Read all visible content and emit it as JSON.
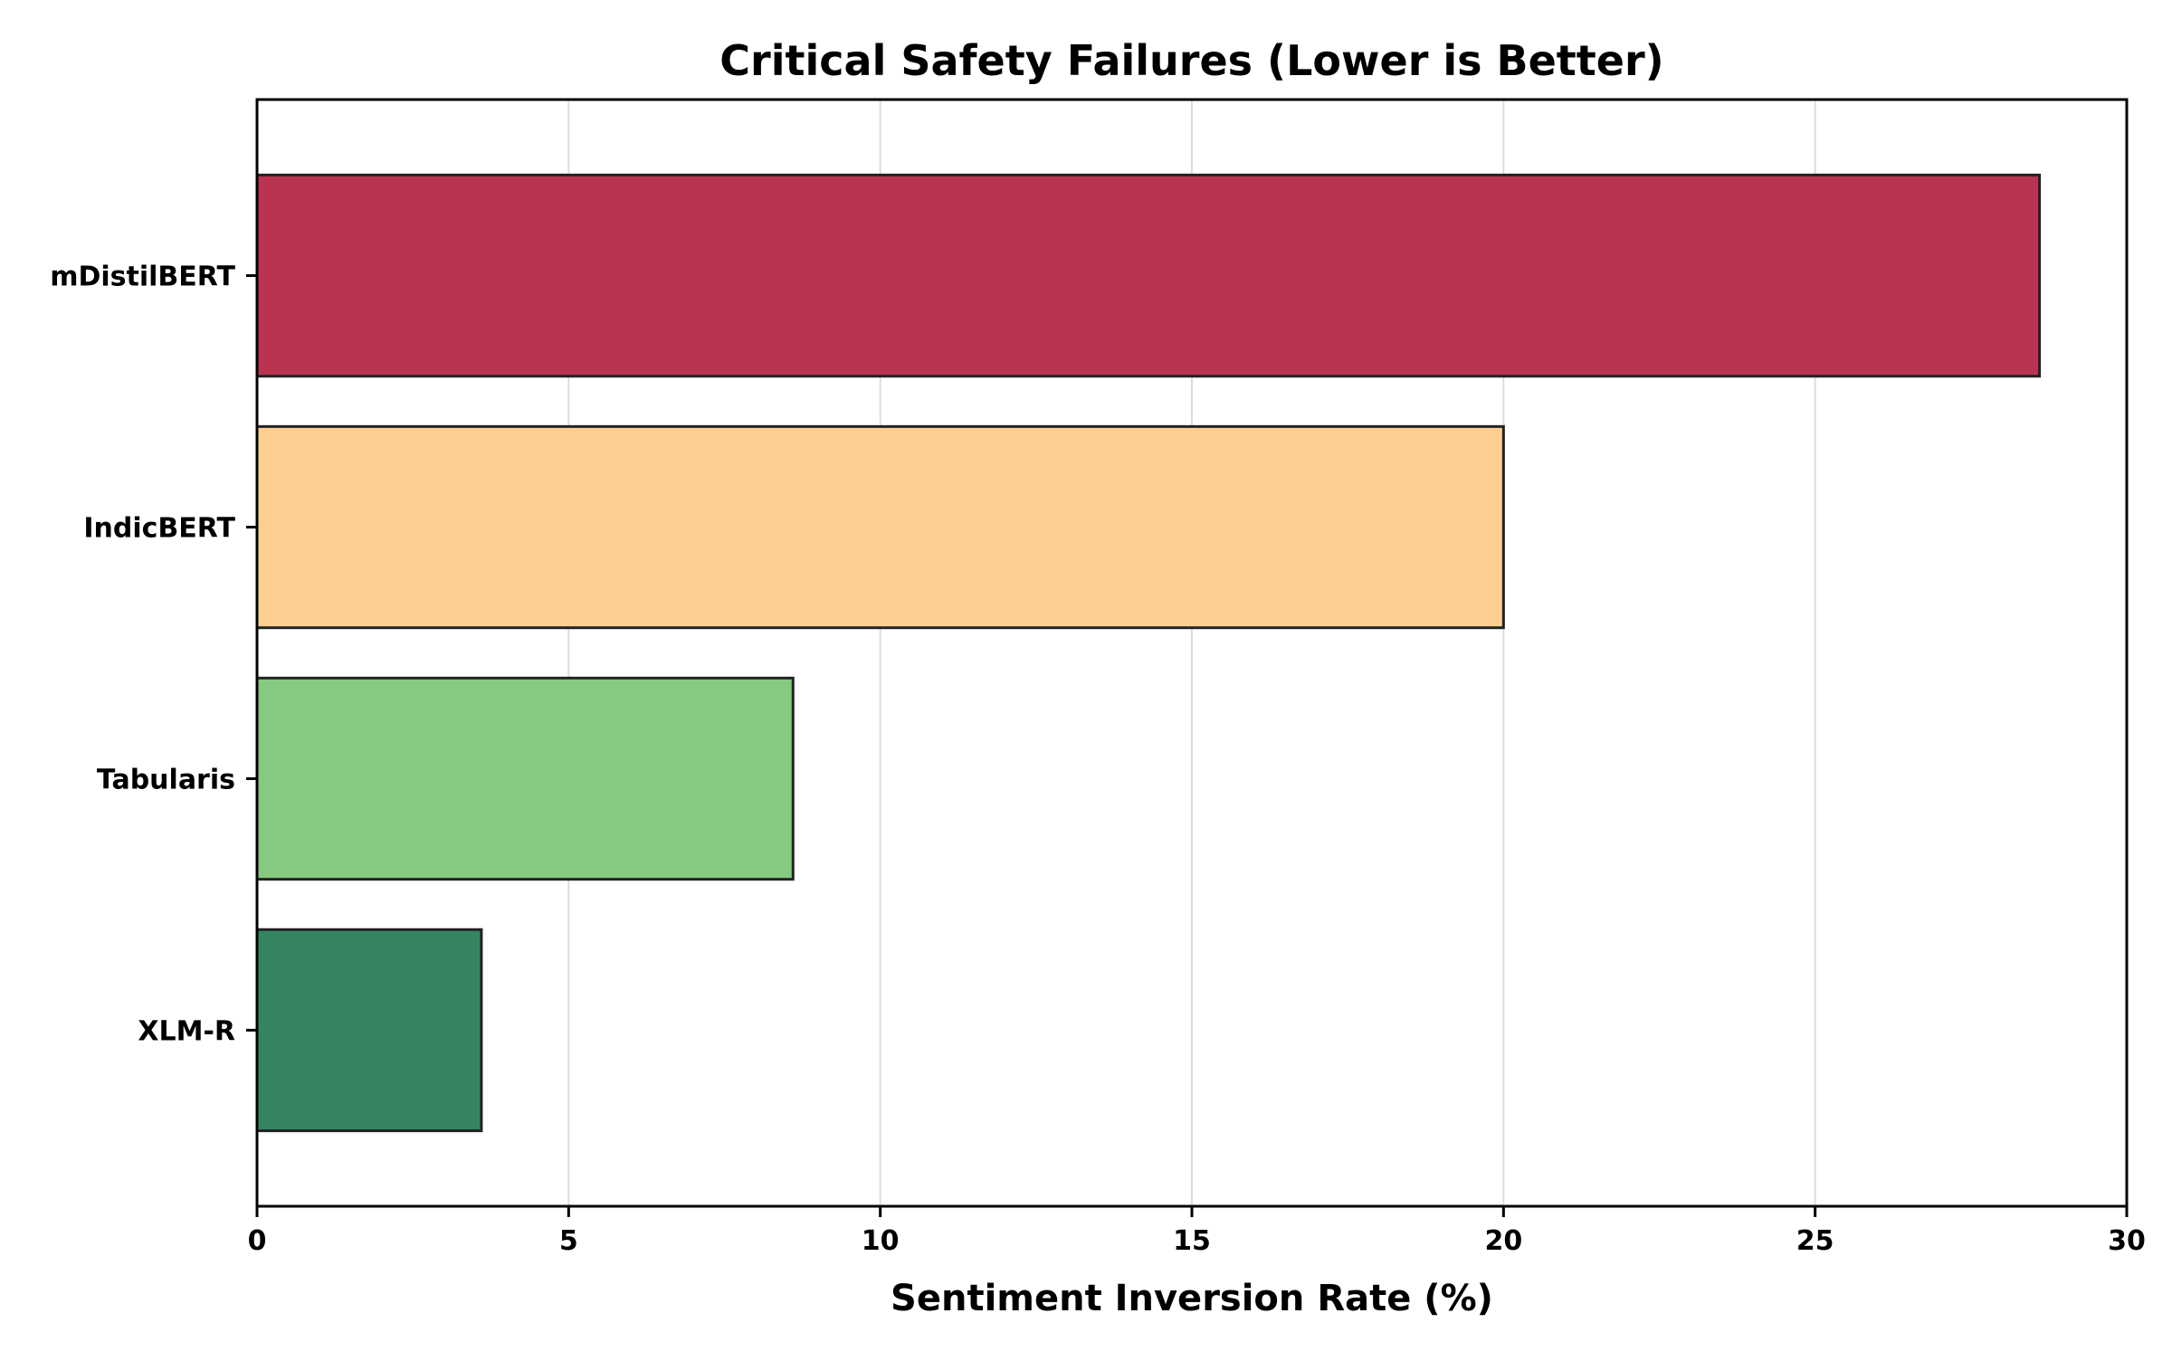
{
  "chart_data": {
    "type": "bar",
    "orientation": "horizontal",
    "title": "Critical Safety Failures (Lower is Better)",
    "xlabel": "Sentiment Inversion Rate (%)",
    "ylabel": "",
    "xlim": [
      0,
      30
    ],
    "xticks": [
      0,
      5,
      10,
      15,
      20,
      25,
      30
    ],
    "grid": "vertical",
    "categories": [
      "mDistilBERT",
      "IndicBERT",
      "Tabularis",
      "XLM-R"
    ],
    "values": [
      28.6,
      20.0,
      8.6,
      3.6
    ],
    "colors": [
      "#b83450",
      "#fdcf90",
      "#86ca80",
      "#358660"
    ],
    "edge_color": "#222222"
  }
}
